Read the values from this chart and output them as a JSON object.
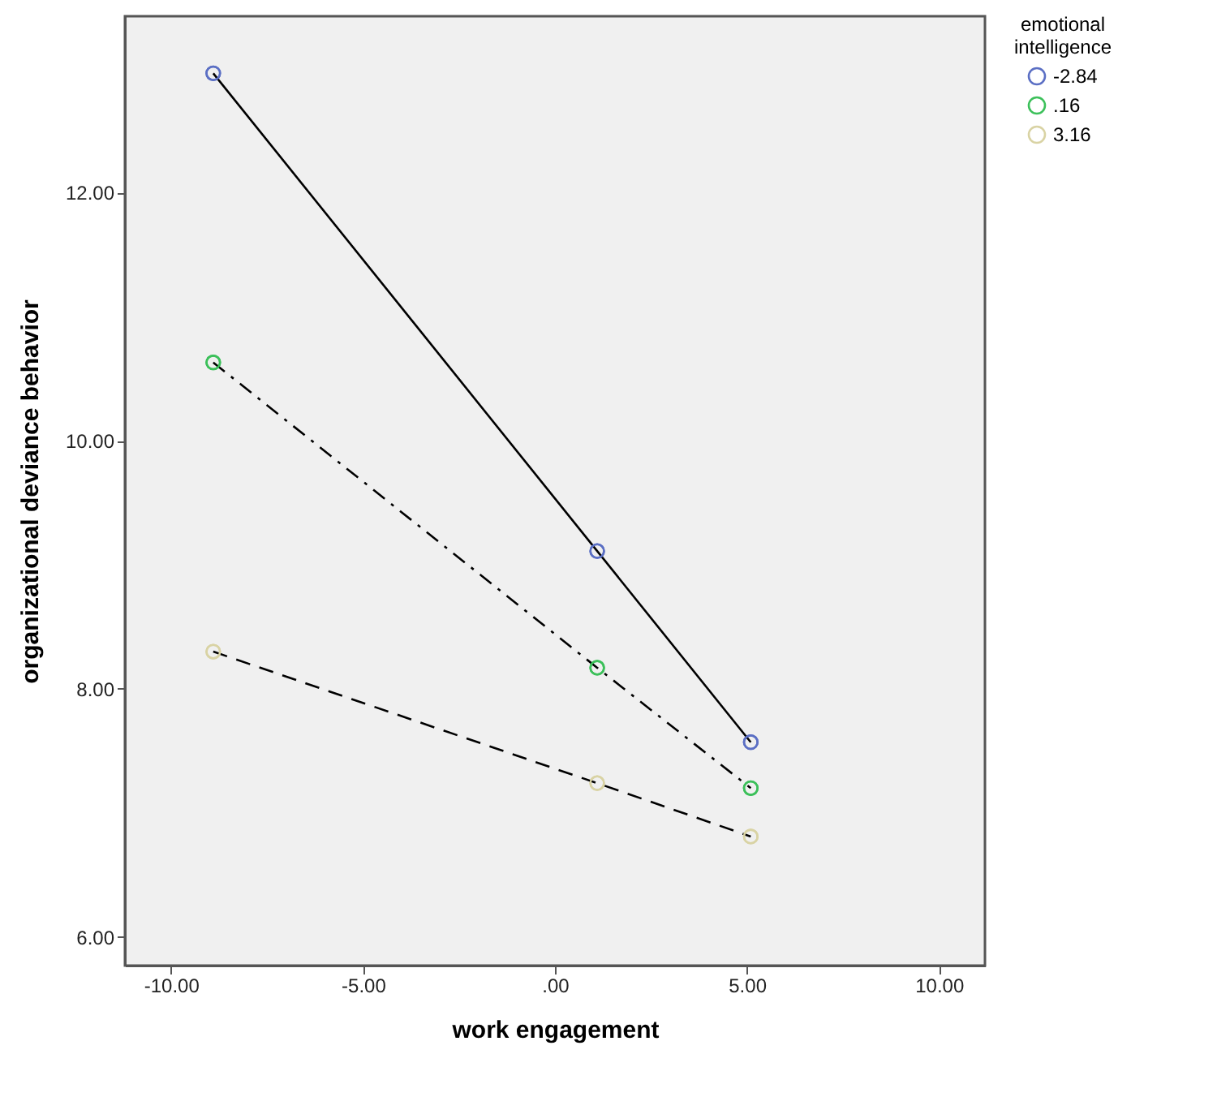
{
  "chart_data": {
    "type": "scatter",
    "xlabel": "work engagement",
    "ylabel": "organizational deviance behavior",
    "legend_title": "emotional intelligence",
    "legend": "top right",
    "grid": false,
    "marker": "circle",
    "xlim": [
      -11.2,
      11.2
    ],
    "ylim": [
      5.77,
      13.42
    ],
    "xticks": [
      {
        "value": -10,
        "label": "-10.00"
      },
      {
        "value": -5,
        "label": "-5.00"
      },
      {
        "value": 0,
        "label": ".00"
      },
      {
        "value": 5,
        "label": "5.00"
      },
      {
        "value": 10,
        "label": "10.00"
      }
    ],
    "yticks": [
      {
        "value": 6,
        "label": "6.00"
      },
      {
        "value": 8,
        "label": "8.00"
      },
      {
        "value": 10,
        "label": "10.00"
      },
      {
        "value": 12,
        "label": "12.00"
      }
    ],
    "series": [
      {
        "name": "-2.84",
        "color": "#5b6fc4",
        "x": [
          -8.9,
          1.1,
          5.1
        ],
        "values": [
          12.96,
          9.11,
          7.57
        ]
      },
      {
        "name": ".16",
        "color": "#3cc05a",
        "x": [
          -8.9,
          1.1,
          5.1
        ],
        "values": [
          10.63,
          8.17,
          7.2
        ]
      },
      {
        "name": "3.16",
        "color": "#d9d3a4",
        "x": [
          -8.9,
          1.1,
          5.1
        ],
        "values": [
          8.3,
          7.24,
          6.81
        ]
      },
      {
        "type": "line",
        "color": "#000000",
        "line_style": "solid",
        "x": [
          -8.9,
          1.1,
          5.1
        ],
        "values": [
          12.96,
          9.11,
          7.57
        ]
      },
      {
        "type": "line",
        "color": "#000000",
        "line_style": "dashdot",
        "x": [
          -8.9,
          1.1,
          5.1
        ],
        "values": [
          10.63,
          8.17,
          7.2
        ]
      },
      {
        "type": "line",
        "color": "#000000",
        "line_style": "dashed",
        "x": [
          -8.9,
          1.1,
          5.1
        ],
        "values": [
          8.3,
          7.24,
          6.81
        ]
      }
    ]
  }
}
